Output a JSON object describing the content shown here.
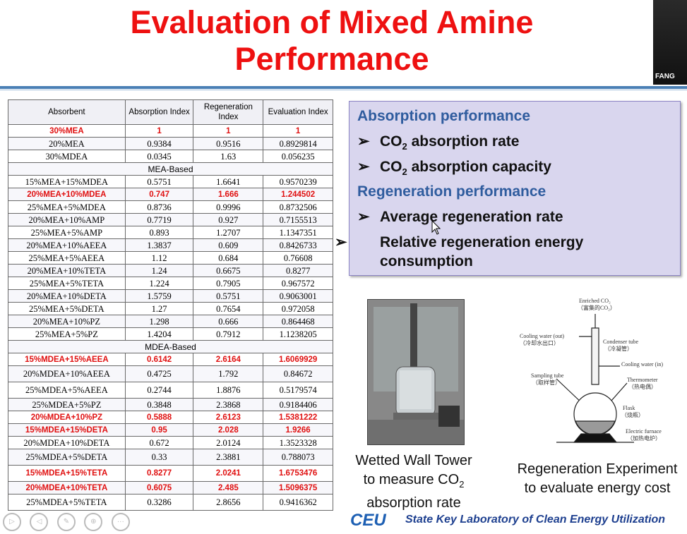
{
  "title": "Evaluation of Mixed Amine Performance",
  "title_line1": "Evaluation of Mixed Amine",
  "title_line2": "Performance",
  "corner_label": "FANG",
  "table": {
    "headers": [
      "Absorbent",
      "Absorption Index",
      "Regeneration Index",
      "Evaluation Index"
    ],
    "rows": [
      {
        "cells": [
          "30%MEA",
          "1",
          "1",
          "1"
        ],
        "hl": true
      },
      {
        "cells": [
          "20%MEA",
          "0.9384",
          "0.9516",
          "0.8929814"
        ]
      },
      {
        "cells": [
          "30%MDEA",
          "0.0345",
          "1.63",
          "0.056235"
        ]
      },
      {
        "section": "MEA-Based"
      },
      {
        "cells": [
          "15%MEA+15%MDEA",
          "0.5751",
          "1.6641",
          "0.9570239"
        ]
      },
      {
        "cells": [
          "20%MEA+10%MDEA",
          "0.747",
          "1.666",
          "1.244502"
        ],
        "hl": true
      },
      {
        "cells": [
          "25%MEA+5%MDEA",
          "0.8736",
          "0.9996",
          "0.8732506"
        ]
      },
      {
        "cells": [
          "20%MEA+10%AMP",
          "0.7719",
          "0.927",
          "0.7155513"
        ]
      },
      {
        "cells": [
          "25%MEA+5%AMP",
          "0.893",
          "1.2707",
          "1.1347351"
        ]
      },
      {
        "cells": [
          "20%MEA+10%AEEA",
          "1.3837",
          "0.609",
          "0.8426733"
        ]
      },
      {
        "cells": [
          "25%MEA+5%AEEA",
          "1.12",
          "0.684",
          "0.76608"
        ]
      },
      {
        "cells": [
          "20%MEA+10%TETA",
          "1.24",
          "0.6675",
          "0.8277"
        ]
      },
      {
        "cells": [
          "25%MEA+5%TETA",
          "1.224",
          "0.7905",
          "0.967572"
        ]
      },
      {
        "cells": [
          "20%MEA+10%DETA",
          "1.5759",
          "0.5751",
          "0.9063001"
        ]
      },
      {
        "cells": [
          "25%MEA+5%DETA",
          "1.27",
          "0.7654",
          "0.972058"
        ]
      },
      {
        "cells": [
          "20%MEA+10%PZ",
          "1.298",
          "0.666",
          "0.864468"
        ]
      },
      {
        "cells": [
          "25%MEA+5%PZ",
          "1.4204",
          "0.7912",
          "1.1238205"
        ]
      },
      {
        "section": "MDEA-Based"
      },
      {
        "cells": [
          "15%MDEA+15%AEEA",
          "0.6142",
          "2.6164",
          "1.6069929"
        ],
        "hl": true
      },
      {
        "cells": [
          "20%MDEA+10%AEEA",
          "0.4725",
          "1.792",
          "0.84672"
        ],
        "tall": true
      },
      {
        "cells": [
          "25%MDEA+5%AEEA",
          "0.2744",
          "1.8876",
          "0.5179574"
        ],
        "tall": true
      },
      {
        "cells": [
          "25%MDEA+5%PZ",
          "0.3848",
          "2.3868",
          "0.9184406"
        ]
      },
      {
        "cells": [
          "20%MDEA+10%PZ",
          "0.5888",
          "2.6123",
          "1.5381222"
        ],
        "hl": true
      },
      {
        "cells": [
          "15%MDEA+15%DETA",
          "0.95",
          "2.028",
          "1.9266"
        ],
        "hl": true
      },
      {
        "cells": [
          "20%MDEA+10%DETA",
          "0.672",
          "2.0124",
          "1.3523328"
        ]
      },
      {
        "cells": [
          "25%MDEA+5%DETA",
          "0.33",
          "2.3881",
          "0.788073"
        ],
        "tall": true
      },
      {
        "cells": [
          "15%MDEA+15%TETA",
          "0.8277",
          "2.0241",
          "1.6753476"
        ],
        "hl": true,
        "tall": true
      },
      {
        "cells": [
          "20%MDEA+10%TETA",
          "0.6075",
          "2.485",
          "1.5096375"
        ],
        "hl": true
      },
      {
        "cells": [
          "25%MDEA+5%TETA",
          "0.3286",
          "2.8656",
          "0.9416362"
        ],
        "tall": true
      }
    ]
  },
  "performance": {
    "absorption_heading": "Absorption performance",
    "absorption_items": [
      {
        "pre": "CO",
        "sub": "2",
        "post": " absorption rate"
      },
      {
        "pre": "CO",
        "sub": "2",
        "post": " absorption capacity"
      }
    ],
    "regeneration_heading": "Regeneration performance",
    "regeneration_items": [
      "Average regeneration rate",
      "Relative regeneration energy consumption"
    ],
    "bullet": "➢"
  },
  "wetted_caption": {
    "line1": "Wetted Wall Tower",
    "line2_pre": "to measure CO",
    "line2_sub": "2",
    "line3": "absorption rate"
  },
  "regen_caption": {
    "line1": "Regeneration Experiment",
    "line2": "to evaluate energy cost"
  },
  "diagram_labels": {
    "enriched": "Enriched CO₂",
    "enriched_cn": "（富集的CO₂）",
    "cooling_out": "Cooling water (out)",
    "cooling_out_cn": "（冷却水出口）",
    "condenser": "Condenser tube",
    "condenser_cn": "（冷凝管）",
    "cooling_in": "Cooling water (in)",
    "sampling": "Sampling tube",
    "sampling_cn": "（取样管）",
    "thermometer": "Thermometer",
    "thermometer_cn": "（热电偶）",
    "flask": "Flask",
    "flask_cn": "（烧瓶）",
    "furnace": "Electric furnace",
    "furnace_cn": "（加热电炉）"
  },
  "footer": {
    "logo": "CEU",
    "lab": "State Key Laboratory of Clean Energy Utilization"
  },
  "colors": {
    "title": "#ee1111",
    "highlight": "#e01010",
    "heading": "#2f5c9e",
    "box": "#d9d6ee"
  }
}
